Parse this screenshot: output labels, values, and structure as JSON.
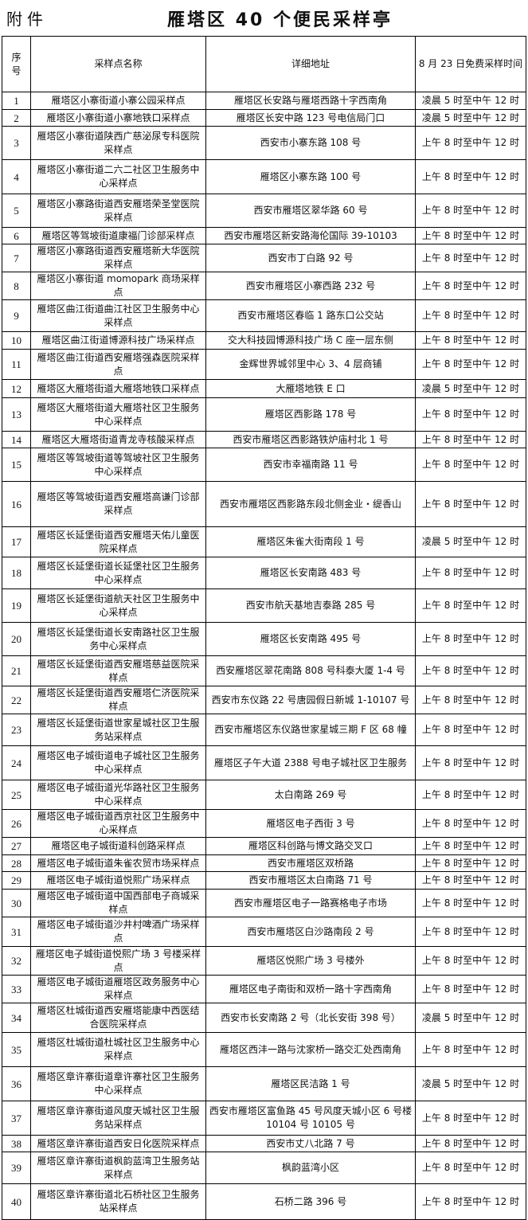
{
  "header": {
    "attachment_label": "附件",
    "title": "雁塔区 40 个便民采样亭"
  },
  "table": {
    "columns": [
      "序号",
      "采样点名称",
      "详细地址",
      "8 月 23 日免费采样时间"
    ],
    "rows": [
      [
        "1",
        "雁塔区小寨街道小寨公园采样点",
        "雁塔区长安路与雁塔西路十字西南角",
        "凌晨 5 时至中午 12 时"
      ],
      [
        "2",
        "雁塔区小寨街道小寨地铁口采样点",
        "雁塔区长安中路 123 号电信局门口",
        "凌晨 5 时至中午 12 时"
      ],
      [
        "3",
        "雁塔区小寨街道陕西广慈泌尿专科医院采样点",
        "西安市小寨东路 108 号",
        "上午 8 时至中午 12 时"
      ],
      [
        "4",
        "雁塔区小寨街道二六二社区卫生服务中心采样点",
        "雁塔区小寨东路 100 号",
        "上午 8 时至中午 12 时"
      ],
      [
        "5",
        "雁塔区小寨路街道西安雁塔荣圣堂医院采样点",
        "西安市雁塔区翠华路 60 号",
        "上午 8 时至中午 12 时"
      ],
      [
        "6",
        "雁塔区等驾坡街道康福门诊部采样点",
        "西安市雁塔区新安路海伦国际 39-10103",
        "上午 8 时至中午 12 时"
      ],
      [
        "7",
        "雁塔区小寨路街道西安雁塔新大华医院采样点",
        "西安市丁白路 92 号",
        "上午 8 时至中午 12 时"
      ],
      [
        "8",
        "雁塔区小寨街道 momopark 商场采样点",
        "西安市雁塔区小寨西路 232 号",
        "上午 8 时至中午 12 时"
      ],
      [
        "9",
        "雁塔区曲江街道曲江社区卫生服务中心采样点",
        "西安市雁塔区春临 1 路东口公交站",
        "上午 8 时至中午 12 时"
      ],
      [
        "10",
        "雁塔区曲江街道博源科技广场采样点",
        "交大科技园博源科技广场 C 座一层东侧",
        "上午 8 时至中午 12 时"
      ],
      [
        "11",
        "雁塔区曲江街道西安雁塔强森医院采样点",
        "金辉世界城邻里中心 3、4 层商铺",
        "上午 8 时至中午 12 时"
      ],
      [
        "12",
        "雁塔区大雁塔街道大雁塔地铁口采样点",
        "大雁塔地铁 E 口",
        "凌晨 5 时至中午 12 时"
      ],
      [
        "13",
        "雁塔区大雁塔街道大雁塔社区卫生服务中心采样点",
        "雁塔区西影路 178 号",
        "上午 8 时至中午 12 时"
      ],
      [
        "14",
        "雁塔区大雁塔街道青龙寺核酸采样点",
        "西安市雁塔区西影路铁炉庙村北 1 号",
        "上午 8 时至中午 12 时"
      ],
      [
        "15",
        "雁塔区等驾坡街道等驾坡社区卫生服务中心采样点",
        "西安市幸福南路 11 号",
        "上午 8 时至中午 12 时"
      ],
      [
        "16",
        "雁塔区等驾坡街道西安雁塔高谦门诊部采样点",
        "西安市雁塔区西影路东段北侧金业・缇香山",
        "上午 8 时至中午 12 时"
      ],
      [
        "17",
        "雁塔区长延堡街道西安雁塔天佑儿童医院采样点",
        "雁塔区朱雀大街南段 1 号",
        "凌晨 5 时至中午 12 时"
      ],
      [
        "18",
        "雁塔区长延堡街道长延堡社区卫生服务中心采样点",
        "雁塔区长安南路 483 号",
        "上午 8 时至中午 12 时"
      ],
      [
        "19",
        "雁塔区长延堡街道航天社区卫生服务中心采样点",
        "西安市航天基地吉泰路 285 号",
        "上午 8 时至中午 12 时"
      ],
      [
        "20",
        "雁塔区长延堡街道长安南路社区卫生服务中心采样点",
        "雁塔区长安南路 495 号",
        "上午 8 时至中午 12 时"
      ],
      [
        "21",
        "雁塔区长延堡街道西安雁塔慈益医院采样点",
        "西安雁塔区翠花南路 808 号科泰大厦 1-4 号",
        "上午 8 时至中午 12 时"
      ],
      [
        "22",
        "雁塔区长延堡街道西安雁塔仁济医院采样点",
        "西安市东仪路 22 号唐园假日新城 1-10107 号",
        "上午 8 时至中午 12 时"
      ],
      [
        "23",
        "雁塔区长延堡街道世家星城社区卫生服务站采样点",
        "西安市雁塔区东仪路世家星城三期 F 区 68 幢",
        "上午 8 时至中午 12 时"
      ],
      [
        "24",
        "雁塔区电子城街道电子城社区卫生服务中心采样点",
        "雁塔区子午大道 2388 号电子城社区卫生服务",
        "上午 8 时至中午 12 时"
      ],
      [
        "25",
        "雁塔区电子城街道光华路社区卫生服务中心采样点",
        "太白南路 269 号",
        "上午 8 时至中午 12 时"
      ],
      [
        "26",
        "雁塔区电子城街道西京社区卫生服务中心采样点",
        "雁塔区电子西街 3 号",
        "上午 8 时至中午 12 时"
      ],
      [
        "27",
        "雁塔区电子城街道科创路采样点",
        "雁塔区科创路与博文路交叉口",
        "上午 8 时至中午 12 时"
      ],
      [
        "28",
        "雁塔区电子城街道朱雀农贸市场采样点",
        "西安市雁塔区双桥路",
        "上午 8 时至中午 12 时"
      ],
      [
        "29",
        "雁塔区电子城街道悦熙广场采样点",
        "西安市雁塔区太白南路 71 号",
        "上午 8 时至中午 12 时"
      ],
      [
        "30",
        "雁塔区电子城街道中国西部电子商城采样点",
        "西安市雁塔区电子一路赛格电子市场",
        "上午 8 时至中午 12 时"
      ],
      [
        "31",
        "雁塔区电子城街道沙井村啤酒广场采样点",
        "西安市雁塔区白沙路南段 2 号",
        "上午 8 时至中午 12 时"
      ],
      [
        "32",
        "雁塔区电子城街道悦熙广场 3 号楼采样点",
        "雁塔区悦熙广场 3 号楼外",
        "上午 8 时至中午 12 时"
      ],
      [
        "33",
        "雁塔区电子城街道雁塔区政务服务中心采样点",
        "雁塔区电子南街和双桥一路十字西南角",
        "上午 8 时至中午 12 时"
      ],
      [
        "34",
        "雁塔区杜城街道西安雁塔能康中西医结合医院采样点",
        "西安市长安南路 2 号（北长安街 398 号）",
        "凌晨 5 时至中午 12 时"
      ],
      [
        "35",
        "雁塔区杜城街道杜城社区卫生服务中心采样点",
        "雁塔区西沣一路与沈家桥一路交汇处西南角",
        "上午 8 时至中午 12 时"
      ],
      [
        "36",
        "雁塔区章许寨街道章许寨社区卫生服务中心采样点",
        "雁塔区民洁路 1 号",
        "凌晨 5 时至中午 12 时"
      ],
      [
        "37",
        "雁塔区章许寨街道风度天城社区卫生服务站采样点",
        "西安市雁塔区富鱼路 45 号风度天城小区 6 号楼 10104 号 10105 号",
        "上午 8 时至中午 12 时"
      ],
      [
        "38",
        "雁塔区章许寨街道西安日化医院采样点",
        "西安市丈八北路 7 号",
        "上午 8 时至中午 12 时"
      ],
      [
        "39",
        "雁塔区章许寨街道枫韵蓝湾卫生服务站采样点",
        "枫韵蓝湾小区",
        "上午 8 时至中午 12 时"
      ],
      [
        "40",
        "雁塔区章许寨街道北石桥社区卫生服务站采样点",
        "石桥二路 396 号",
        "上午 8 时至中午 12 时"
      ]
    ]
  }
}
